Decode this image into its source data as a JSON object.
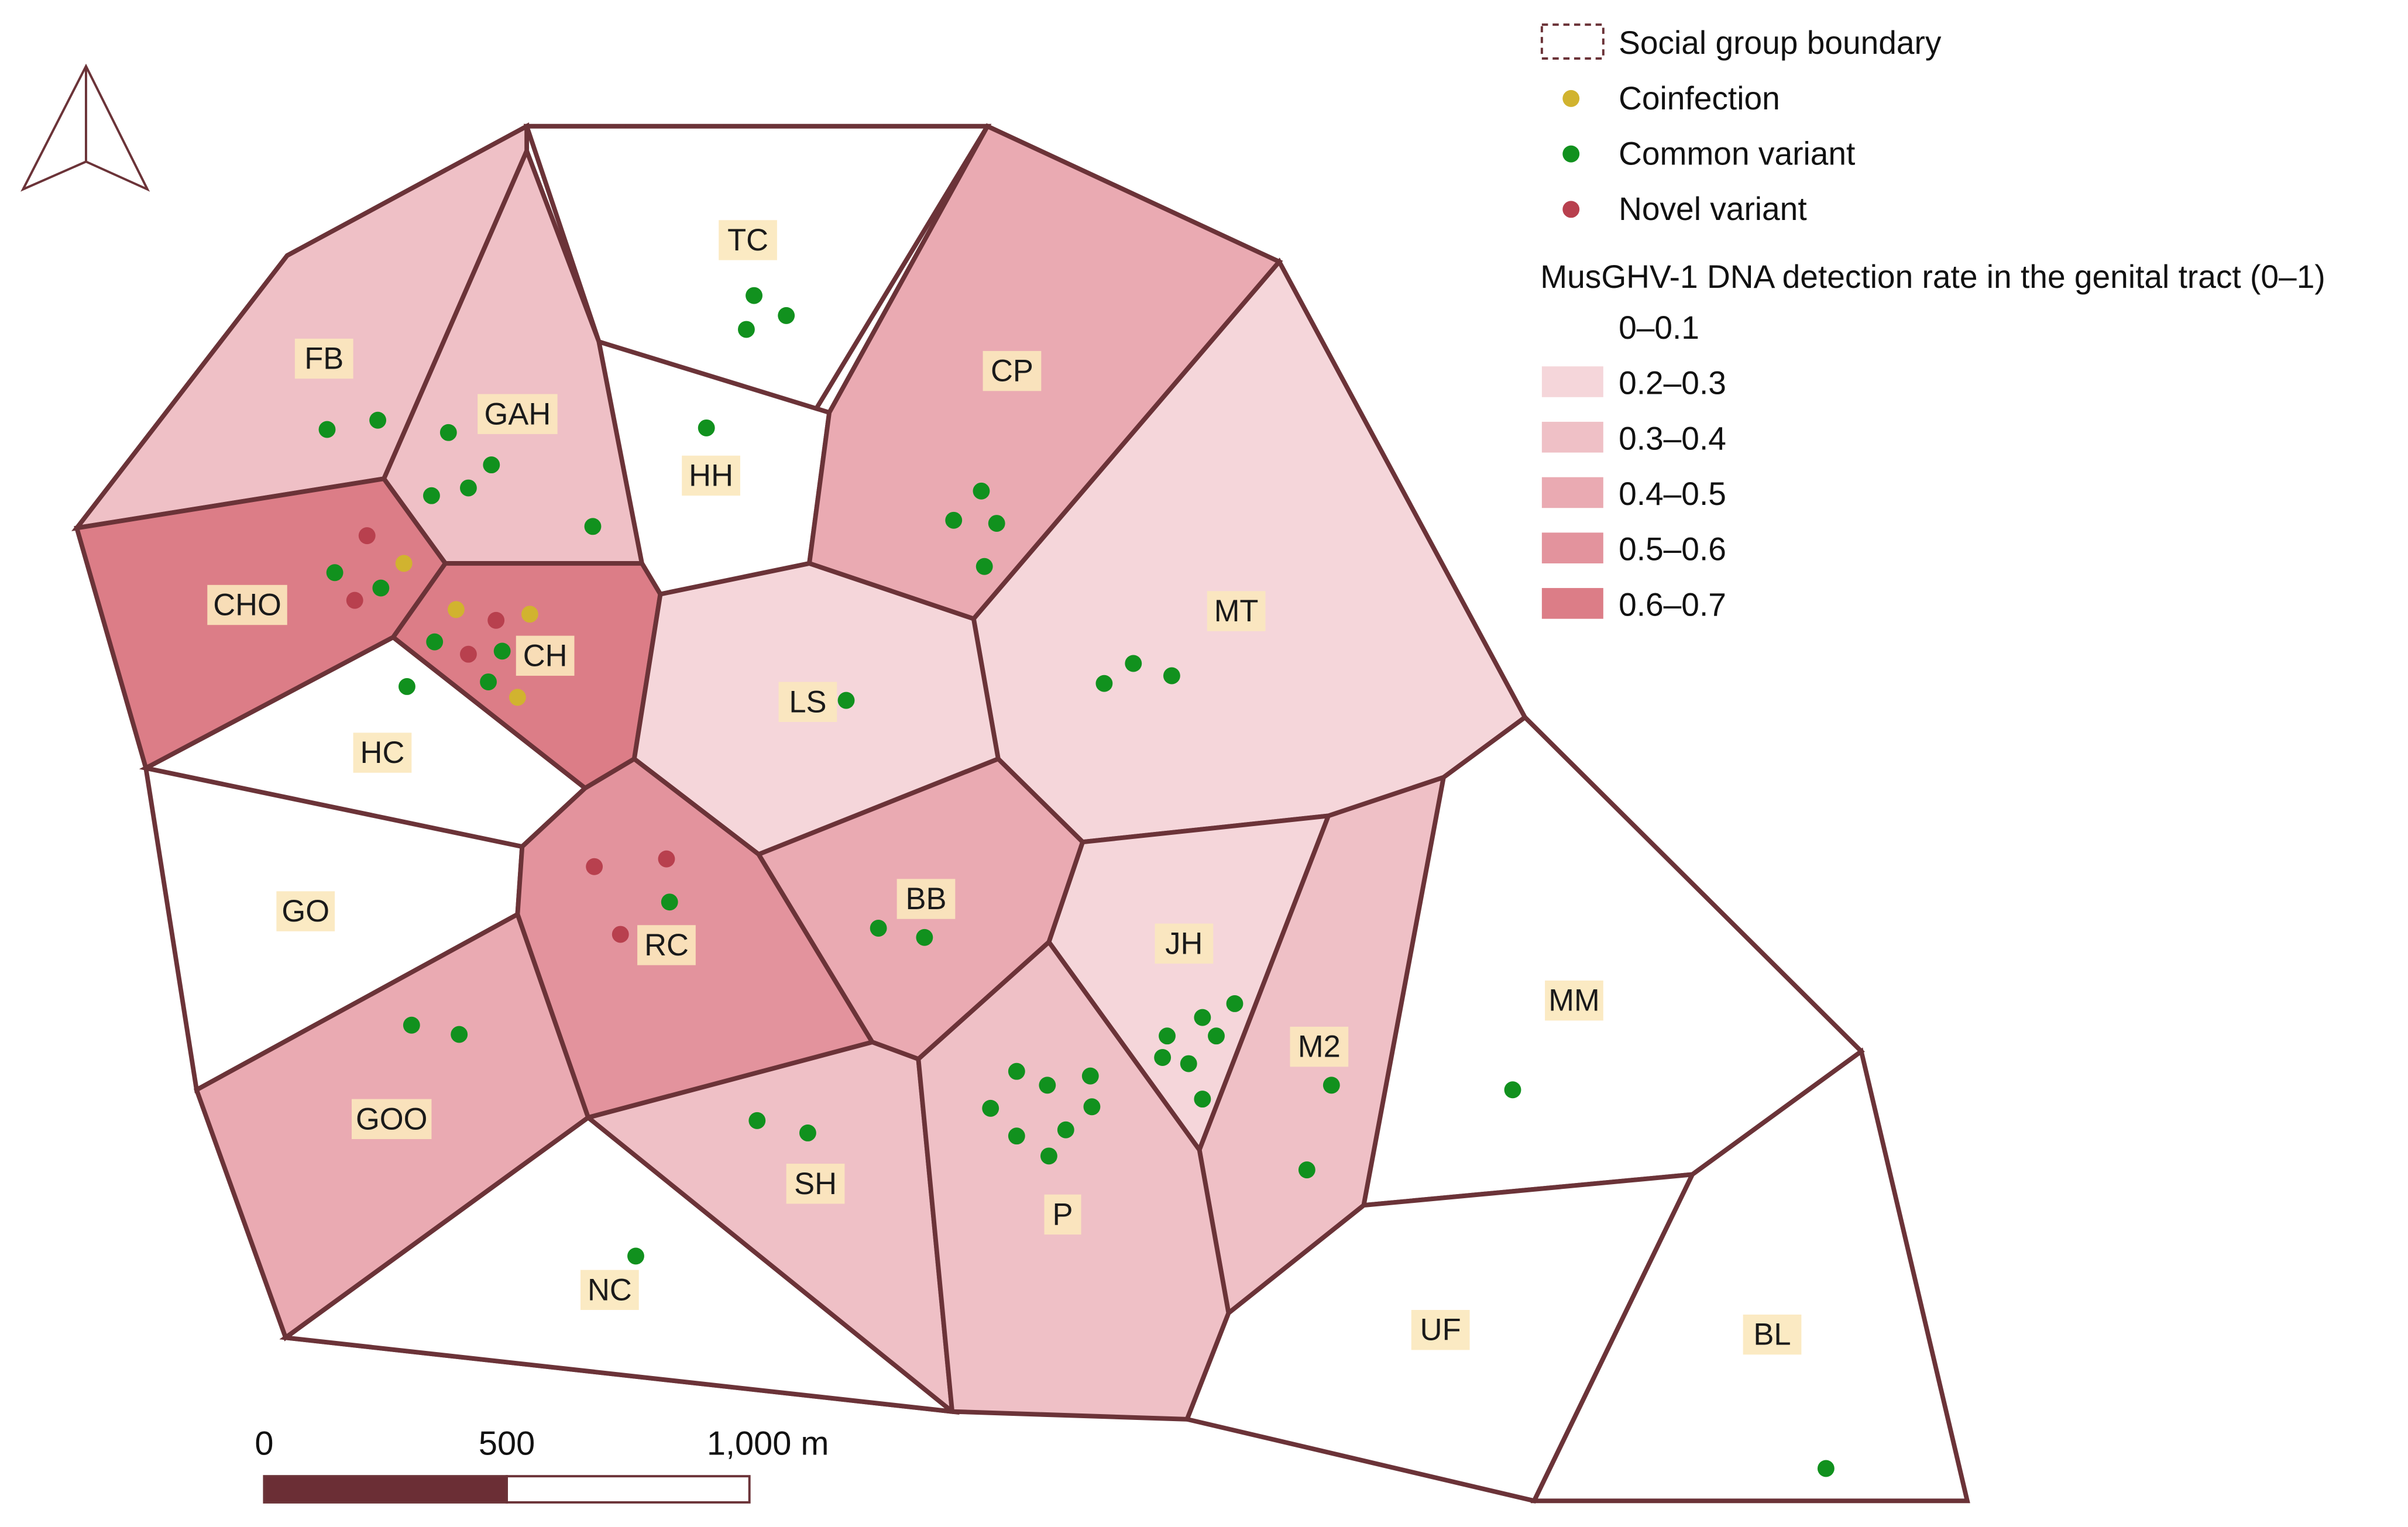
{
  "legend": {
    "boundary_label": "Social group boundary",
    "point_items": [
      {
        "label": "Coinfection",
        "color": "#d1b32f"
      },
      {
        "label": "Common variant",
        "color": "#11911e"
      },
      {
        "label": "Novel variant",
        "color": "#b8404e"
      }
    ],
    "rate_title": "MusGHV-1 DNA detection rate in the genital tract (0–1)",
    "rate_classes": [
      {
        "label": "0–0.1",
        "color": "#ffffff"
      },
      {
        "label": "0.2–0.3",
        "color": "#f5d6da"
      },
      {
        "label": "0.3–0.4",
        "color": "#efc0c6"
      },
      {
        "label": "0.4–0.5",
        "color": "#eaaab2"
      },
      {
        "label": "0.5–0.6",
        "color": "#e3939d"
      },
      {
        "label": "0.6–0.7",
        "color": "#dc7d87"
      }
    ]
  },
  "scale_bar": {
    "labels": [
      "0",
      "500",
      "1,000 m"
    ],
    "fill_color": "#6b2e35"
  },
  "north_arrow": "north-arrow-icon",
  "groups": [
    {
      "code": "TC",
      "rate_class": 0
    },
    {
      "code": "FB",
      "rate_class": 2
    },
    {
      "code": "GAH",
      "rate_class": 2
    },
    {
      "code": "HH",
      "rate_class": 0
    },
    {
      "code": "CP",
      "rate_class": 3
    },
    {
      "code": "CHO",
      "rate_class": 5
    },
    {
      "code": "CH",
      "rate_class": 5
    },
    {
      "code": "MT",
      "rate_class": 1
    },
    {
      "code": "LS",
      "rate_class": 1
    },
    {
      "code": "HC",
      "rate_class": 0
    },
    {
      "code": "GO",
      "rate_class": 0
    },
    {
      "code": "RC",
      "rate_class": 4
    },
    {
      "code": "BB",
      "rate_class": 3
    },
    {
      "code": "JH",
      "rate_class": 1
    },
    {
      "code": "M2",
      "rate_class": 2
    },
    {
      "code": "MM",
      "rate_class": 0
    },
    {
      "code": "GOO",
      "rate_class": 3
    },
    {
      "code": "SH",
      "rate_class": 2
    },
    {
      "code": "P",
      "rate_class": 2
    },
    {
      "code": "NC",
      "rate_class": 0
    },
    {
      "code": "UF",
      "rate_class": 0
    },
    {
      "code": "BL",
      "rate_class": 0
    }
  ]
}
